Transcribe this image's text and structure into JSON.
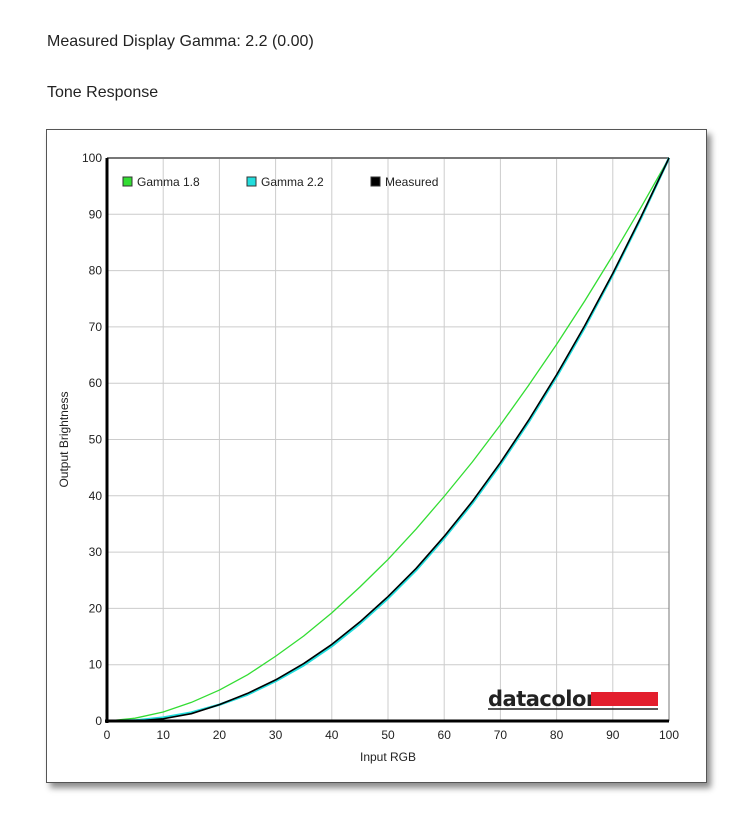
{
  "header": {
    "gamma_line": "Measured Display Gamma: 2.2 (0.00)",
    "section_title": "Tone Response"
  },
  "logo": {
    "text": "datacolor",
    "color": "#e31e2d"
  },
  "chart_data": {
    "type": "line",
    "title": "Tone Response",
    "xlabel": "Input RGB",
    "ylabel": "Output Brightness",
    "xlim": [
      0,
      100
    ],
    "ylim": [
      0,
      100
    ],
    "xticks": [
      0,
      10,
      20,
      30,
      40,
      50,
      60,
      70,
      80,
      90,
      100
    ],
    "yticks": [
      0,
      10,
      20,
      30,
      40,
      50,
      60,
      70,
      80,
      90,
      100
    ],
    "grid": true,
    "legend_position": "top-left",
    "x": [
      0,
      5,
      10,
      15,
      20,
      25,
      30,
      35,
      40,
      45,
      50,
      55,
      60,
      65,
      70,
      75,
      80,
      85,
      90,
      95,
      100
    ],
    "series": [
      {
        "name": "Gamma 1.8",
        "color": "#33dd33",
        "values": [
          0,
          0.5,
          1.6,
          3.3,
          5.5,
          8.2,
          11.5,
          15.1,
          19.2,
          23.8,
          28.7,
          34.1,
          39.9,
          46.0,
          52.6,
          59.6,
          66.9,
          74.6,
          82.7,
          91.2,
          100
        ]
      },
      {
        "name": "Gamma 2.2",
        "color": "#22dddd",
        "values": [
          0,
          0.1,
          0.6,
          1.5,
          2.9,
          4.7,
          7.1,
          9.9,
          13.3,
          17.3,
          21.8,
          26.8,
          32.5,
          38.7,
          45.6,
          53.1,
          61.2,
          69.9,
          79.3,
          89.3,
          100
        ]
      },
      {
        "name": "Measured",
        "color": "#000000",
        "values": [
          0,
          0,
          0.4,
          1.3,
          2.9,
          4.9,
          7.3,
          10.2,
          13.6,
          17.6,
          22.1,
          27.1,
          32.8,
          39.0,
          45.9,
          53.4,
          61.5,
          70.2,
          79.5,
          89.5,
          100
        ]
      }
    ]
  }
}
